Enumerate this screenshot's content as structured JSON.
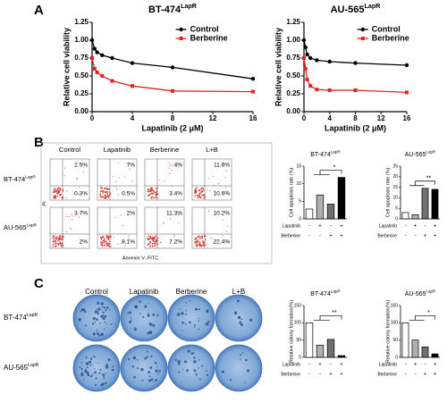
{
  "panel_labels": [
    "A",
    "B",
    "C"
  ],
  "chart_data": [
    {
      "type": "line",
      "title": "BT-474",
      "title_sup": "LapR",
      "x_label": "Lapatinib (2 μM)",
      "y_label": "Relative cell viability",
      "x": [
        0,
        0.25,
        0.5,
        1,
        2,
        4,
        8,
        16
      ],
      "series": [
        {
          "name": "Control",
          "color": "#000000",
          "values": [
            1.0,
            0.88,
            0.83,
            0.79,
            0.75,
            0.68,
            0.62,
            0.46
          ]
        },
        {
          "name": "Berberine",
          "color": "#e8231f",
          "values": [
            0.75,
            0.6,
            0.55,
            0.5,
            0.43,
            0.36,
            0.29,
            0.28
          ]
        }
      ],
      "xlim": [
        0,
        16
      ],
      "xticks": [
        0,
        4,
        8,
        12,
        16
      ],
      "ylim": [
        0,
        1.25
      ],
      "yticks": [
        {
          "value": 0,
          "label": "0.00"
        },
        0.25,
        {
          "value": 0.5,
          "label": "0.50"
        },
        0.75,
        {
          "value": 1,
          "label": "1.00"
        },
        1.25
      ]
    },
    {
      "type": "line",
      "title": "AU-565",
      "title_sup": "LapR",
      "x_label": "Lapatinib (2 μM)",
      "y_label": "Relative cell viability",
      "x": [
        0,
        0.25,
        0.5,
        1,
        2,
        4,
        8,
        16
      ],
      "series": [
        {
          "name": "Control",
          "color": "#000000",
          "values": [
            1.0,
            0.9,
            0.8,
            0.75,
            0.72,
            0.7,
            0.68,
            0.65
          ]
        },
        {
          "name": "Berberine",
          "color": "#e8231f",
          "values": [
            0.75,
            0.6,
            0.45,
            0.36,
            0.31,
            0.3,
            0.3,
            0.27
          ]
        }
      ],
      "xlim": [
        0,
        16
      ],
      "xticks": [
        0,
        4,
        8,
        12,
        16
      ],
      "ylim": [
        0,
        1.25
      ],
      "yticks": [
        {
          "value": 0,
          "label": "0.00"
        },
        0.25,
        {
          "value": 0.5,
          "label": "0.50"
        },
        0.75,
        {
          "value": 1,
          "label": "1.00"
        },
        1.25
      ]
    },
    {
      "type": "bar",
      "title": "BT-474",
      "title_sup": "LapR",
      "y_label": "Cell apoptosis rate (%)",
      "values": [
        2.8,
        6.8,
        4.2,
        11.8
      ],
      "colors": [
        "#ffffff",
        "#b0b0b0",
        "#707070",
        "#000000"
      ],
      "ylim": [
        0,
        15
      ],
      "yticks": [
        0,
        5,
        10,
        15
      ],
      "significance": "*",
      "treatments": [
        {
          "name": "Lapatinib",
          "signs": [
            "-",
            "+",
            "-",
            "+"
          ]
        },
        {
          "name": "Berberine",
          "signs": [
            "-",
            "-",
            "+",
            "+"
          ]
        }
      ]
    },
    {
      "type": "bar",
      "title": "AU-565",
      "title_sup": "LapR",
      "y_label": "Cell apoptosis rate (%)",
      "values": [
        3,
        2,
        14.5,
        14
      ],
      "colors": [
        "#ffffff",
        "#b0b0b0",
        "#707070",
        "#000000"
      ],
      "ylim": [
        0,
        25
      ],
      "yticks": [
        0,
        5,
        10,
        15,
        20,
        25
      ],
      "significance": "**",
      "treatments": [
        {
          "name": "Lapatinib",
          "signs": [
            "-",
            "+",
            "-",
            "+"
          ]
        },
        {
          "name": "Berberine",
          "signs": [
            "-",
            "-",
            "+",
            "+"
          ]
        }
      ]
    },
    {
      "type": "bar",
      "title": "BT-474",
      "title_sup": "LapR",
      "y_label": "Relative colony formation(%)",
      "values": [
        100,
        35,
        52,
        5
      ],
      "colors": [
        "#ffffff",
        "#b0b0b0",
        "#707070",
        "#000000"
      ],
      "ylim": [
        0,
        150
      ],
      "yticks": [
        0,
        50,
        100,
        150
      ],
      "significance": "**",
      "treatments": [
        {
          "name": "Lapatinib",
          "signs": [
            "-",
            "+",
            "-",
            "+"
          ]
        },
        {
          "name": "Berberine",
          "signs": [
            "-",
            "-",
            "+",
            "+"
          ]
        }
      ]
    },
    {
      "type": "bar",
      "title": "AU-565",
      "title_sup": "LapR",
      "y_label": "Relative colony formation(%)",
      "values": [
        100,
        50,
        30,
        10
      ],
      "colors": [
        "#ffffff",
        "#b0b0b0",
        "#707070",
        "#000000"
      ],
      "ylim": [
        0,
        150
      ],
      "yticks": [
        0,
        50,
        100,
        150
      ],
      "significance": "*",
      "treatments": [
        {
          "name": "Lapatinib",
          "signs": [
            "-",
            "+",
            "-",
            "+"
          ]
        },
        {
          "name": "Berberine",
          "signs": [
            "-",
            "-",
            "+",
            "+"
          ]
        }
      ]
    }
  ],
  "flow": {
    "columns": [
      "Control",
      "Lapatinib",
      "Berberine",
      "L+B"
    ],
    "rows": [
      {
        "label": "BT-474",
        "sup": "LapR",
        "upper": [
          "2.5%",
          "7%",
          "4%",
          "11.6%"
        ],
        "lower": [
          "0.3%",
          "0.5%",
          "3.4%",
          "10.6%"
        ]
      },
      {
        "label": "AU-565",
        "sup": "LapR",
        "upper": [
          "3.7%",
          "2%",
          "11.3%",
          "10.2%"
        ],
        "lower": [
          "2%",
          "8.1%",
          "7.2%",
          "22.4%"
        ]
      }
    ],
    "y_axis": "PI",
    "x_axis": "Annexin V- FITC"
  },
  "colony": {
    "columns": [
      "Control",
      "Lapatinib",
      "Berberine",
      "L+B"
    ],
    "rows": [
      {
        "label": "BT-474",
        "sup": "LapR"
      },
      {
        "label": "AU-565",
        "sup": "LapR"
      }
    ]
  }
}
